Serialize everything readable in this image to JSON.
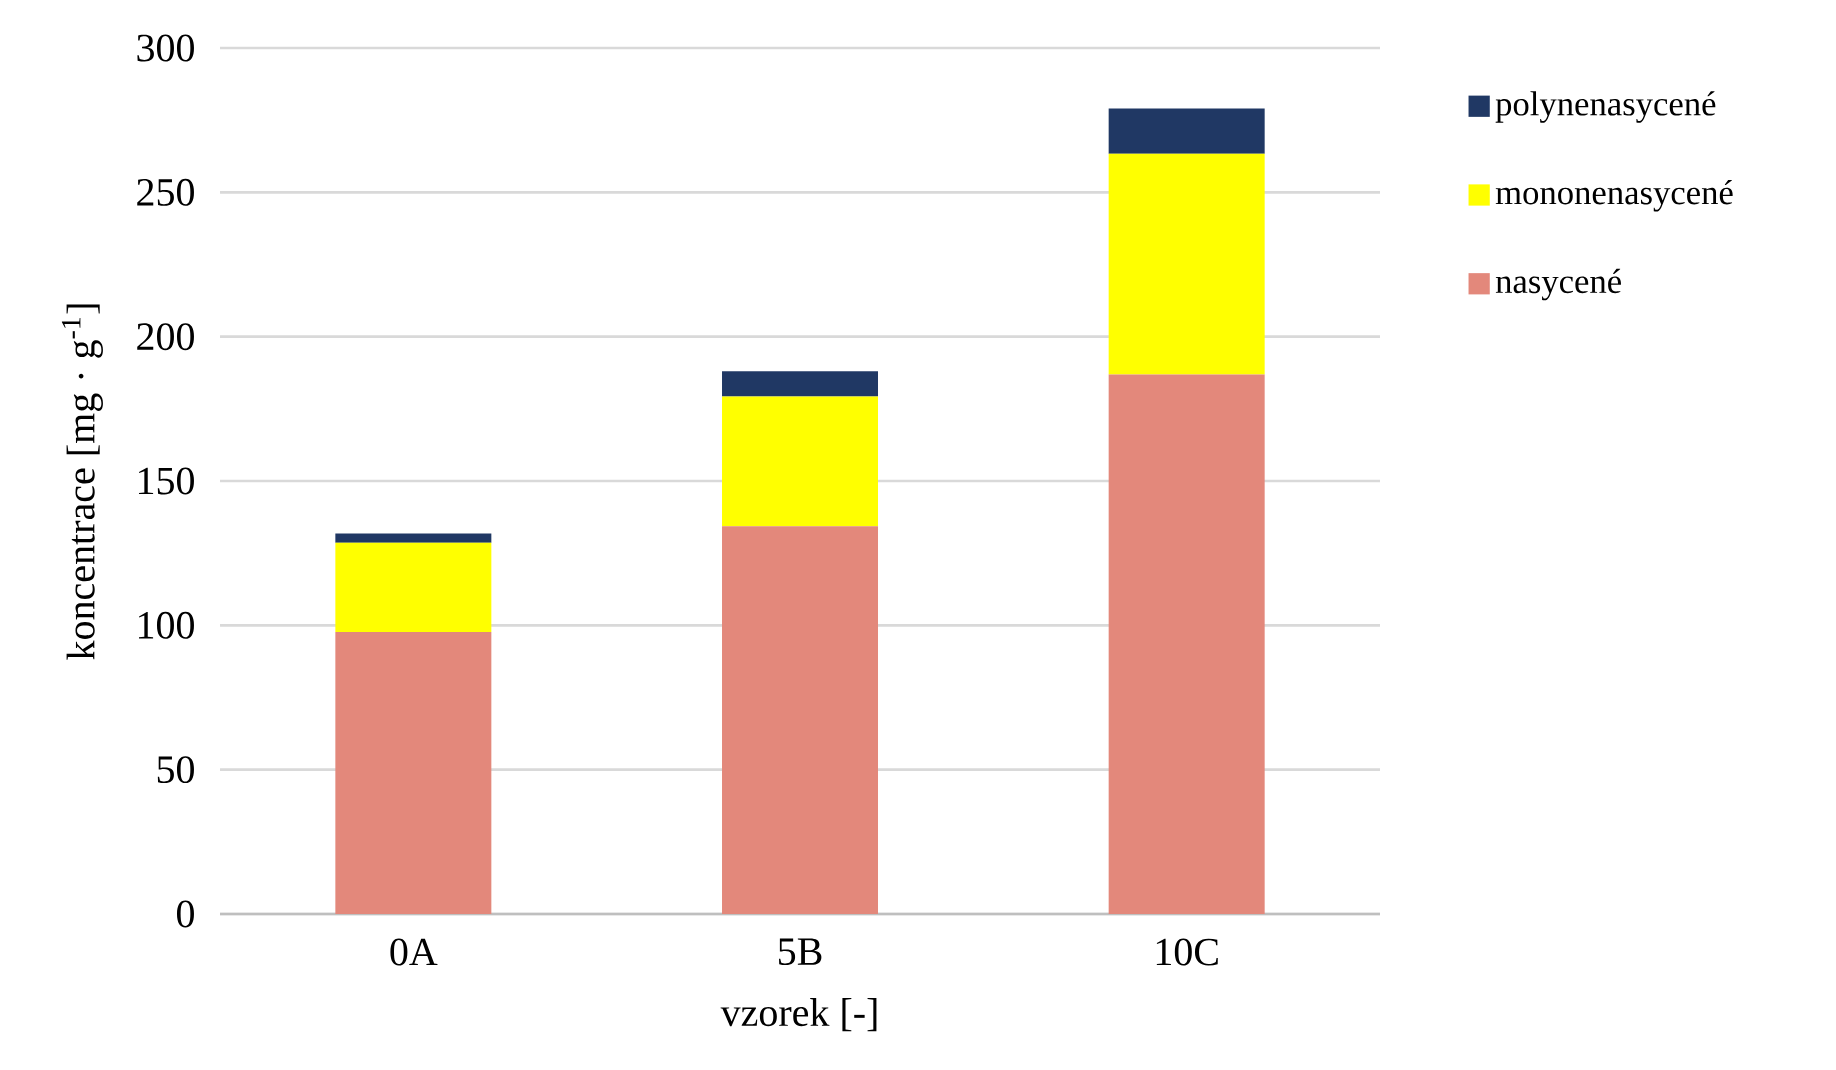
{
  "chart_data": {
    "type": "bar",
    "stacked": true,
    "xlabel": "vzorek [-]",
    "ylabel": "koncentrace [mg · g$^{-1}$]",
    "categories": [
      "0A",
      "5B",
      "10C"
    ],
    "series": [
      {
        "name": "nasycené",
        "color": "#e3887b",
        "values": [
          97.7,
          134.3,
          186.9
        ]
      },
      {
        "name": "mononenasycené",
        "color": "#ffff00",
        "values": [
          30.9,
          45.0,
          76.5
        ]
      },
      {
        "name": "polynenasycené",
        "color": "#203864",
        "values": [
          3.2,
          8.7,
          15.6
        ]
      }
    ],
    "ylim": [
      0,
      300
    ],
    "yticks": [
      0,
      50,
      100,
      150,
      200,
      250,
      300
    ],
    "grid": "y",
    "legend": "right"
  }
}
